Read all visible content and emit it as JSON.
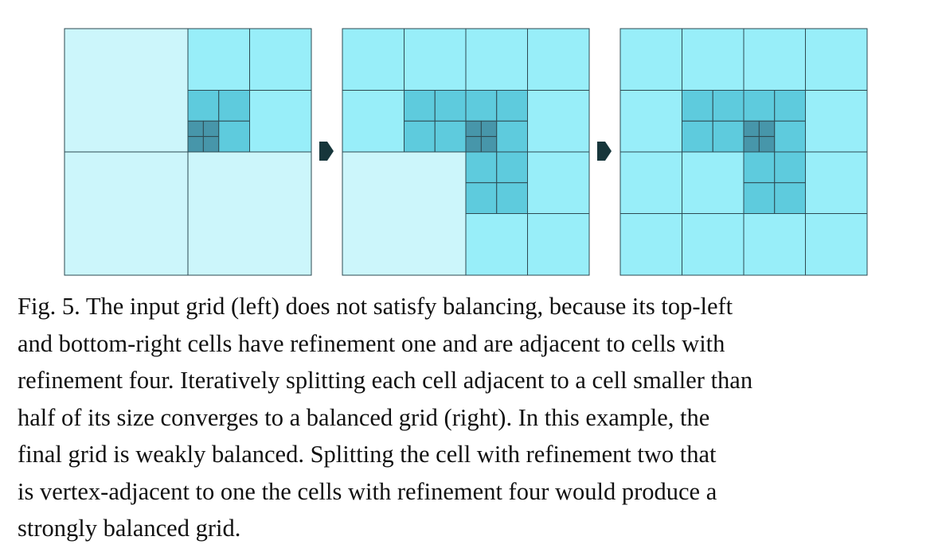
{
  "figure": {
    "panels": [
      {
        "name": "input-grid",
        "cells": [
          [
            0,
            0,
            8,
            1
          ],
          [
            8,
            0,
            4,
            2
          ],
          [
            12,
            0,
            4,
            2
          ],
          [
            8,
            4,
            2,
            3
          ],
          [
            10,
            4,
            2,
            3
          ],
          [
            8,
            6,
            1,
            4
          ],
          [
            9,
            6,
            1,
            4
          ],
          [
            8,
            7,
            1,
            4
          ],
          [
            9,
            7,
            1,
            4
          ],
          [
            10,
            6,
            2,
            3
          ],
          [
            12,
            4,
            4,
            2
          ],
          [
            0,
            8,
            8,
            1
          ],
          [
            8,
            8,
            8,
            1
          ]
        ]
      },
      {
        "name": "intermediate-grid",
        "cells": [
          [
            0,
            0,
            4,
            2
          ],
          [
            4,
            0,
            4,
            2
          ],
          [
            8,
            0,
            4,
            2
          ],
          [
            12,
            0,
            4,
            2
          ],
          [
            0,
            4,
            4,
            2
          ],
          [
            4,
            4,
            2,
            3
          ],
          [
            6,
            4,
            2,
            3
          ],
          [
            4,
            6,
            2,
            3
          ],
          [
            6,
            6,
            2,
            3
          ],
          [
            8,
            4,
            2,
            3
          ],
          [
            10,
            4,
            2,
            3
          ],
          [
            8,
            6,
            1,
            4
          ],
          [
            9,
            6,
            1,
            4
          ],
          [
            8,
            7,
            1,
            4
          ],
          [
            9,
            7,
            1,
            4
          ],
          [
            10,
            6,
            2,
            3
          ],
          [
            12,
            4,
            4,
            2
          ],
          [
            0,
            8,
            8,
            1
          ],
          [
            8,
            8,
            2,
            3
          ],
          [
            10,
            8,
            2,
            3
          ],
          [
            8,
            10,
            2,
            3
          ],
          [
            10,
            10,
            2,
            3
          ],
          [
            12,
            8,
            4,
            2
          ],
          [
            8,
            12,
            4,
            2
          ],
          [
            12,
            12,
            4,
            2
          ]
        ]
      },
      {
        "name": "balanced-grid",
        "cells": [
          [
            0,
            0,
            4,
            2
          ],
          [
            4,
            0,
            4,
            2
          ],
          [
            8,
            0,
            4,
            2
          ],
          [
            12,
            0,
            4,
            2
          ],
          [
            0,
            4,
            4,
            2
          ],
          [
            4,
            4,
            2,
            3
          ],
          [
            6,
            4,
            2,
            3
          ],
          [
            4,
            6,
            2,
            3
          ],
          [
            6,
            6,
            2,
            3
          ],
          [
            8,
            4,
            2,
            3
          ],
          [
            10,
            4,
            2,
            3
          ],
          [
            8,
            6,
            1,
            4
          ],
          [
            9,
            6,
            1,
            4
          ],
          [
            8,
            7,
            1,
            4
          ],
          [
            9,
            7,
            1,
            4
          ],
          [
            10,
            6,
            2,
            3
          ],
          [
            12,
            4,
            4,
            2
          ],
          [
            0,
            8,
            4,
            2
          ],
          [
            4,
            8,
            4,
            2
          ],
          [
            8,
            8,
            2,
            3
          ],
          [
            10,
            8,
            2,
            3
          ],
          [
            8,
            10,
            2,
            3
          ],
          [
            10,
            10,
            2,
            3
          ],
          [
            12,
            8,
            4,
            2
          ],
          [
            0,
            12,
            4,
            2
          ],
          [
            4,
            12,
            4,
            2
          ],
          [
            8,
            12,
            4,
            2
          ],
          [
            12,
            12,
            4,
            2
          ]
        ]
      }
    ],
    "level_colors": {
      "1": "#ccf6fb",
      "2": "#98eef9",
      "3": "#5ecbdd",
      "4": "#4796aa"
    },
    "stroke_color": "#2d4a52",
    "arrow_color": "#17363b"
  },
  "caption": "Fig. 5.  The input grid (left) does not satisfy balancing, because its top-left\nand bottom-right cells have refinement one and are adjacent to cells with\nrefinement four. Iteratively splitting each cell adjacent to a cell smaller than\nhalf of its size converges to a balanced grid (right). In this example, the\nfinal grid is weakly balanced. Splitting the cell with refinement two that\nis vertex-adjacent to one the cells with refinement four would produce a\nstrongly balanced grid."
}
